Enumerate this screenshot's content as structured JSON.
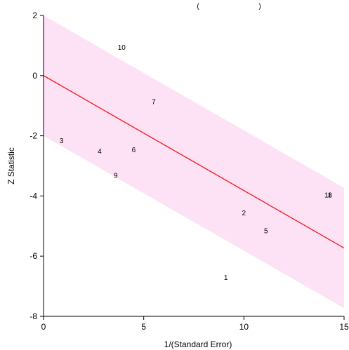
{
  "chart_data": {
    "type": "scatter",
    "title": "",
    "xlabel": "1/(Standard Error)",
    "ylabel": "Z Statistic",
    "xlim": [
      0,
      15
    ],
    "ylim": [
      -8,
      2
    ],
    "x_ticks": [
      "0",
      "5",
      "10",
      "15"
    ],
    "y_ticks": [
      "2",
      "0",
      "-2",
      "-4",
      "-6",
      "-8"
    ],
    "grid": false,
    "regression_line": {
      "intercept": 0.0,
      "slope": -0.382,
      "color": "#ff0000"
    },
    "confidence_band": {
      "offset": 2.0,
      "color": "#fde2f5"
    },
    "points": [
      {
        "label": "1",
        "x": 9.1,
        "y": -6.7
      },
      {
        "label": "2",
        "x": 10.0,
        "y": -4.55
      },
      {
        "label": "3",
        "x": 0.9,
        "y": -2.15
      },
      {
        "label": "4",
        "x": 2.8,
        "y": -2.5
      },
      {
        "label": "5",
        "x": 11.1,
        "y": -5.15
      },
      {
        "label": "6",
        "x": 4.5,
        "y": -2.45
      },
      {
        "label": "7",
        "x": 5.5,
        "y": -0.85
      },
      {
        "label": "8",
        "x": 14.3,
        "y": -3.95
      },
      {
        "label": "9",
        "x": 3.6,
        "y": -3.3
      },
      {
        "label": "10",
        "x": 3.9,
        "y": 0.95
      },
      {
        "label": "11",
        "x": 14.2,
        "y": -3.95
      }
    ],
    "top_fragments": [
      "(",
      ")"
    ]
  }
}
